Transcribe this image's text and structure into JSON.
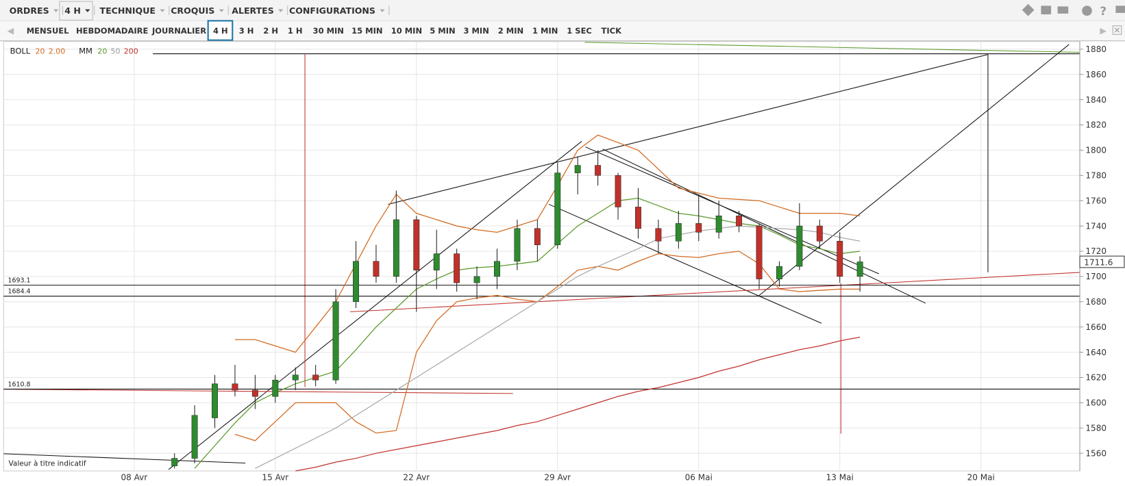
{
  "menu": [
    "ORDRES",
    "4 H",
    "TECHNIQUE",
    "CROQUIS",
    "ALERTES",
    "CONFIGURATIONS"
  ],
  "timeframes": {
    "items": [
      "MENSUEL",
      "HEBDOMADAIRE",
      "JOURNALIER",
      "4 H",
      "3 H",
      "2 H",
      "1 H",
      "30 MIN",
      "15 MIN",
      "10 MIN",
      "5 MIN",
      "3 MIN",
      "2 MIN",
      "1 MIN",
      "1 SEC",
      "TICK"
    ],
    "active": 3
  },
  "chart_data": {
    "type": "candlestick",
    "legend": [
      {
        "name": "BOLL",
        "params": [
          {
            "text": "20",
            "color": "#d2691e"
          },
          {
            "text": "2.00",
            "color": "#d2691e"
          }
        ]
      },
      {
        "name": "MM",
        "params": [
          {
            "text": "20",
            "color": "#5a9a2a"
          },
          {
            "text": "50",
            "color": "#999999"
          },
          {
            "text": "200",
            "color": "#c0312b"
          }
        ]
      }
    ],
    "note": "Valeur à titre indicatif",
    "categories": [
      null,
      null,
      null,
      null,
      null,
      null,
      "08 Avr",
      null,
      null,
      null,
      null,
      null,
      null,
      "15 Avr",
      null,
      null,
      null,
      null,
      null,
      null,
      "22 Avr",
      null,
      null,
      null,
      null,
      null,
      null,
      "29 Avr",
      null,
      null,
      null,
      null,
      null,
      null,
      "06 Mai",
      null,
      null,
      null,
      null,
      null,
      null,
      "13 Mai",
      null,
      null,
      null,
      null,
      null,
      null,
      "20 Mai",
      null,
      null,
      null
    ],
    "open": [
      null,
      null,
      null,
      null,
      null,
      null,
      null,
      null,
      1550,
      1556,
      1588,
      1615,
      1610,
      1605,
      1618,
      1622,
      1618,
      1680,
      1712,
      1700,
      1745,
      1705,
      1718,
      1695,
      1700,
      1712,
      1738,
      1725,
      1782,
      1788,
      1780,
      1755,
      1738,
      1728,
      1742,
      1735,
      1748,
      1740,
      1698,
      1708,
      1740,
      1728,
      1700,
      null,
      null,
      null,
      null,
      null,
      null,
      null,
      null,
      null
    ],
    "high": [
      null,
      null,
      null,
      null,
      null,
      null,
      null,
      null,
      1560,
      1598,
      1622,
      1630,
      1622,
      1622,
      1628,
      1630,
      1690,
      1728,
      1725,
      1768,
      1748,
      1737,
      1722,
      1708,
      1722,
      1745,
      1745,
      1790,
      1795,
      1800,
      1782,
      1770,
      1745,
      1752,
      1765,
      1760,
      1752,
      1742,
      1712,
      1758,
      1745,
      1735,
      1716,
      null,
      null,
      null,
      null,
      null,
      null,
      null,
      null,
      null
    ],
    "low": [
      null,
      null,
      null,
      null,
      null,
      null,
      null,
      null,
      1548,
      1552,
      1580,
      1605,
      1595,
      1600,
      1610,
      1613,
      1615,
      1675,
      1695,
      1695,
      1672,
      1690,
      1688,
      1682,
      1690,
      1705,
      1712,
      1722,
      1765,
      1772,
      1745,
      1730,
      1718,
      1722,
      1728,
      1730,
      1735,
      1690,
      1692,
      1705,
      1722,
      1695,
      1688,
      null,
      null,
      null,
      null,
      null,
      null,
      null,
      null,
      null
    ],
    "close": [
      null,
      null,
      null,
      null,
      null,
      null,
      null,
      null,
      1556,
      1590,
      1615,
      1610,
      1605,
      1618,
      1622,
      1618,
      1680,
      1712,
      1700,
      1745,
      1705,
      1718,
      1695,
      1700,
      1712,
      1738,
      1725,
      1782,
      1788,
      1780,
      1755,
      1738,
      1728,
      1742,
      1735,
      1748,
      1740,
      1698,
      1708,
      1740,
      1728,
      1700,
      1711.6,
      null,
      null,
      null,
      null,
      null,
      null,
      null,
      null,
      null
    ],
    "up_color": "#2e8b2e",
    "down_color": "#c0312b",
    "overlays": [
      {
        "color": "#d2691e",
        "values": [
          null,
          null,
          null,
          null,
          null,
          null,
          null,
          null,
          null,
          null,
          null,
          1650,
          1650,
          1645,
          1640,
          1660,
          1680,
          1710,
          1740,
          1765,
          1750,
          1745,
          1740,
          1737,
          1735,
          1740,
          1745,
          1772,
          1800,
          1812,
          1806,
          1800,
          1785,
          1770,
          1766,
          1762,
          1761,
          1760,
          1755,
          1750,
          1750,
          1750,
          1748,
          null,
          null,
          null,
          null,
          null,
          null,
          null,
          null,
          null
        ]
      },
      {
        "color": "#d2691e",
        "values": [
          null,
          null,
          null,
          null,
          null,
          null,
          null,
          null,
          null,
          null,
          null,
          1575,
          1570,
          1585,
          1600,
          1600,
          1600,
          1585,
          1576,
          1578,
          1640,
          1665,
          1680,
          1683,
          1685,
          1682,
          1680,
          1692,
          1705,
          1708,
          1705,
          1712,
          1718,
          1716,
          1715,
          1718,
          1720,
          1710,
          1690,
          1688,
          1689,
          1690,
          1690,
          null,
          null,
          null,
          null,
          null,
          null,
          null,
          null,
          null
        ]
      },
      {
        "color": "#5a9a2a",
        "values": [
          null,
          null,
          null,
          null,
          null,
          null,
          null,
          null,
          null,
          1548,
          1566,
          1584,
          1600,
          1608,
          1615,
          1620,
          1625,
          1642,
          1660,
          1675,
          1690,
          1698,
          1705,
          1707,
          1708,
          1710,
          1712,
          1726,
          1740,
          1750,
          1760,
          1762,
          1756,
          1750,
          1748,
          1745,
          1742,
          1740,
          1733,
          1725,
          1722,
          1718,
          1720,
          null,
          null,
          null,
          null,
          null,
          null,
          null,
          null,
          null
        ]
      },
      {
        "color": "#aaaaaa",
        "values": [
          null,
          null,
          null,
          null,
          null,
          null,
          null,
          null,
          null,
          null,
          null,
          null,
          1548,
          1556,
          1564,
          1572,
          1580,
          1590,
          1600,
          1610,
          1620,
          1630,
          1640,
          1650,
          1660,
          1670,
          1680,
          1690,
          1700,
          1708,
          1715,
          1722,
          1730,
          1733,
          1736,
          1738,
          1740,
          1739,
          1738,
          1737,
          1735,
          1731,
          1728,
          null,
          null,
          null,
          null,
          null,
          null,
          null,
          null,
          null
        ]
      },
      {
        "color": "#c0312b",
        "values": [
          null,
          null,
          null,
          null,
          null,
          null,
          null,
          null,
          null,
          null,
          null,
          null,
          null,
          null,
          1546,
          1549,
          1553,
          1556,
          1560,
          1563,
          1566,
          1569,
          1572,
          1575,
          1578,
          1582,
          1585,
          1590,
          1595,
          1600,
          1605,
          1609,
          1612,
          1616,
          1620,
          1625,
          1629,
          1634,
          1638,
          1642,
          1645,
          1649,
          1652,
          null,
          null,
          null,
          null,
          null,
          null,
          null,
          null,
          null
        ]
      }
    ],
    "levels": [
      1693.1,
      1684.4,
      1610.8
    ],
    "last_price": 1711.6,
    "ylim": [
      1546,
      1886
    ],
    "yticks": [
      1560,
      1580,
      1600,
      1620,
      1640,
      1660,
      1680,
      1700,
      1720,
      1740,
      1760,
      1780,
      1800,
      1820,
      1840,
      1860,
      1880
    ],
    "grid": true
  }
}
